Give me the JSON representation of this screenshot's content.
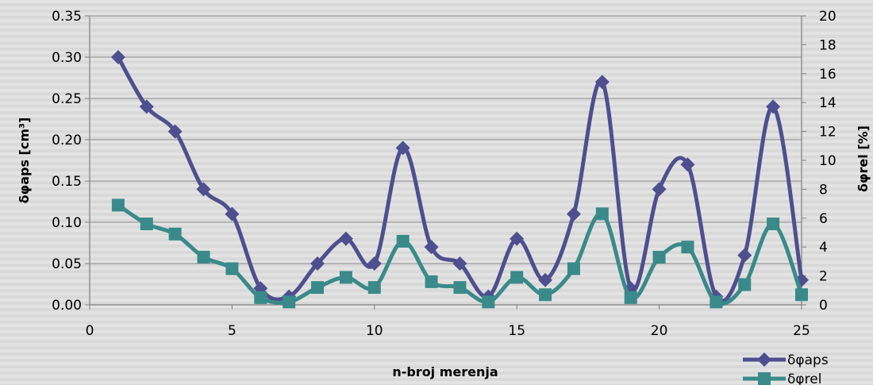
{
  "chart_data": {
    "type": "line",
    "title": "",
    "xlabel": "n-broj merenja",
    "ylabel_left": "δφaps [cm³]",
    "ylabel_right": "δφrel [%]",
    "xlim": [
      0,
      25
    ],
    "x_ticks": [
      "0",
      "5",
      "10",
      "15",
      "20",
      "25"
    ],
    "ylim_left": [
      0,
      0.35
    ],
    "y_ticks_left": [
      "0.00",
      "0.05",
      "0.10",
      "0.15",
      "0.20",
      "0.25",
      "0.30",
      "0.35"
    ],
    "ylim_right": [
      0,
      20
    ],
    "y_ticks_right": [
      "0",
      "2",
      "4",
      "6",
      "8",
      "10",
      "12",
      "14",
      "16",
      "18",
      "20"
    ],
    "grid": true,
    "legend_position": "bottom-right",
    "x": [
      1,
      2,
      3,
      4,
      5,
      6,
      7,
      8,
      9,
      10,
      11,
      12,
      13,
      14,
      15,
      16,
      17,
      18,
      19,
      20,
      21,
      22,
      23,
      24,
      25
    ],
    "series": [
      {
        "name": "δφaps",
        "axis": "left",
        "marker": "diamond",
        "color": "#4f4f8f",
        "values": [
          0.3,
          0.24,
          0.21,
          0.14,
          0.11,
          0.02,
          0.01,
          0.05,
          0.08,
          0.05,
          0.19,
          0.07,
          0.05,
          0.01,
          0.08,
          0.03,
          0.11,
          0.27,
          0.02,
          0.14,
          0.17,
          0.01,
          0.06,
          0.24,
          0.03
        ]
      },
      {
        "name": "δφrel",
        "axis": "right",
        "marker": "square",
        "color": "#3a8a8a",
        "values": [
          6.9,
          5.6,
          4.9,
          3.3,
          2.5,
          0.5,
          0.2,
          1.2,
          1.9,
          1.2,
          4.4,
          1.6,
          1.2,
          0.2,
          1.9,
          0.7,
          2.5,
          6.3,
          0.5,
          3.3,
          4.0,
          0.2,
          1.4,
          5.6,
          0.7
        ]
      }
    ]
  }
}
